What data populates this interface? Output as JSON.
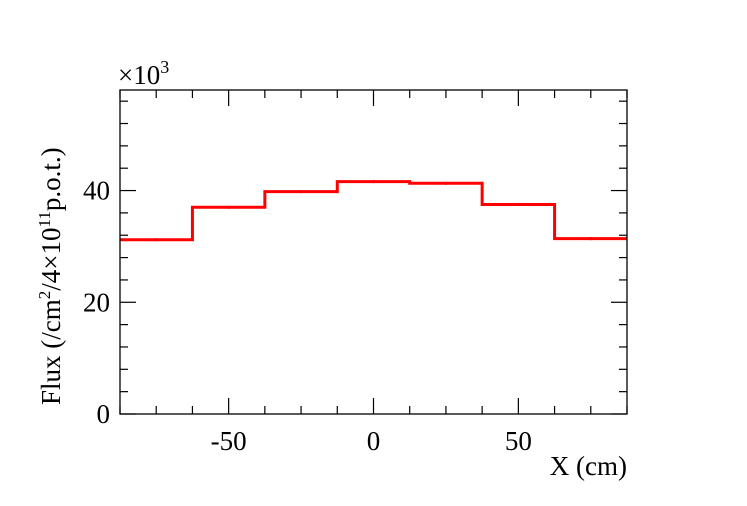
{
  "chart_data": {
    "type": "step",
    "title": "",
    "xlabel": "X (cm)",
    "ylabel_main": "Flux (/cm",
    "ylabel_sup1": "2",
    "ylabel_mid": "/4×10",
    "ylabel_sup2": "11",
    "ylabel_tail": "p.o.t.)",
    "scale_base": "×10",
    "scale_exp": "3",
    "xlim": [
      -87.5,
      87.5
    ],
    "ylim": [
      0,
      58
    ],
    "x_ticks": [
      -50,
      0,
      50
    ],
    "x_tick_labels": [
      "-50",
      "0",
      "50"
    ],
    "y_ticks": [
      0,
      20,
      40
    ],
    "y_tick_labels": [
      "0",
      "20",
      "40"
    ],
    "grid": false,
    "legend": "none",
    "bin_edges": [
      -87.5,
      -62.5,
      -37.5,
      -12.5,
      12.5,
      37.5,
      62.5,
      87.5
    ],
    "bin_centers": [
      -75,
      -50,
      -25,
      0,
      25,
      50,
      75
    ],
    "values": [
      31.2,
      37.0,
      39.8,
      41.6,
      41.3,
      37.5,
      31.4
    ],
    "line_color": "#ff0000"
  }
}
